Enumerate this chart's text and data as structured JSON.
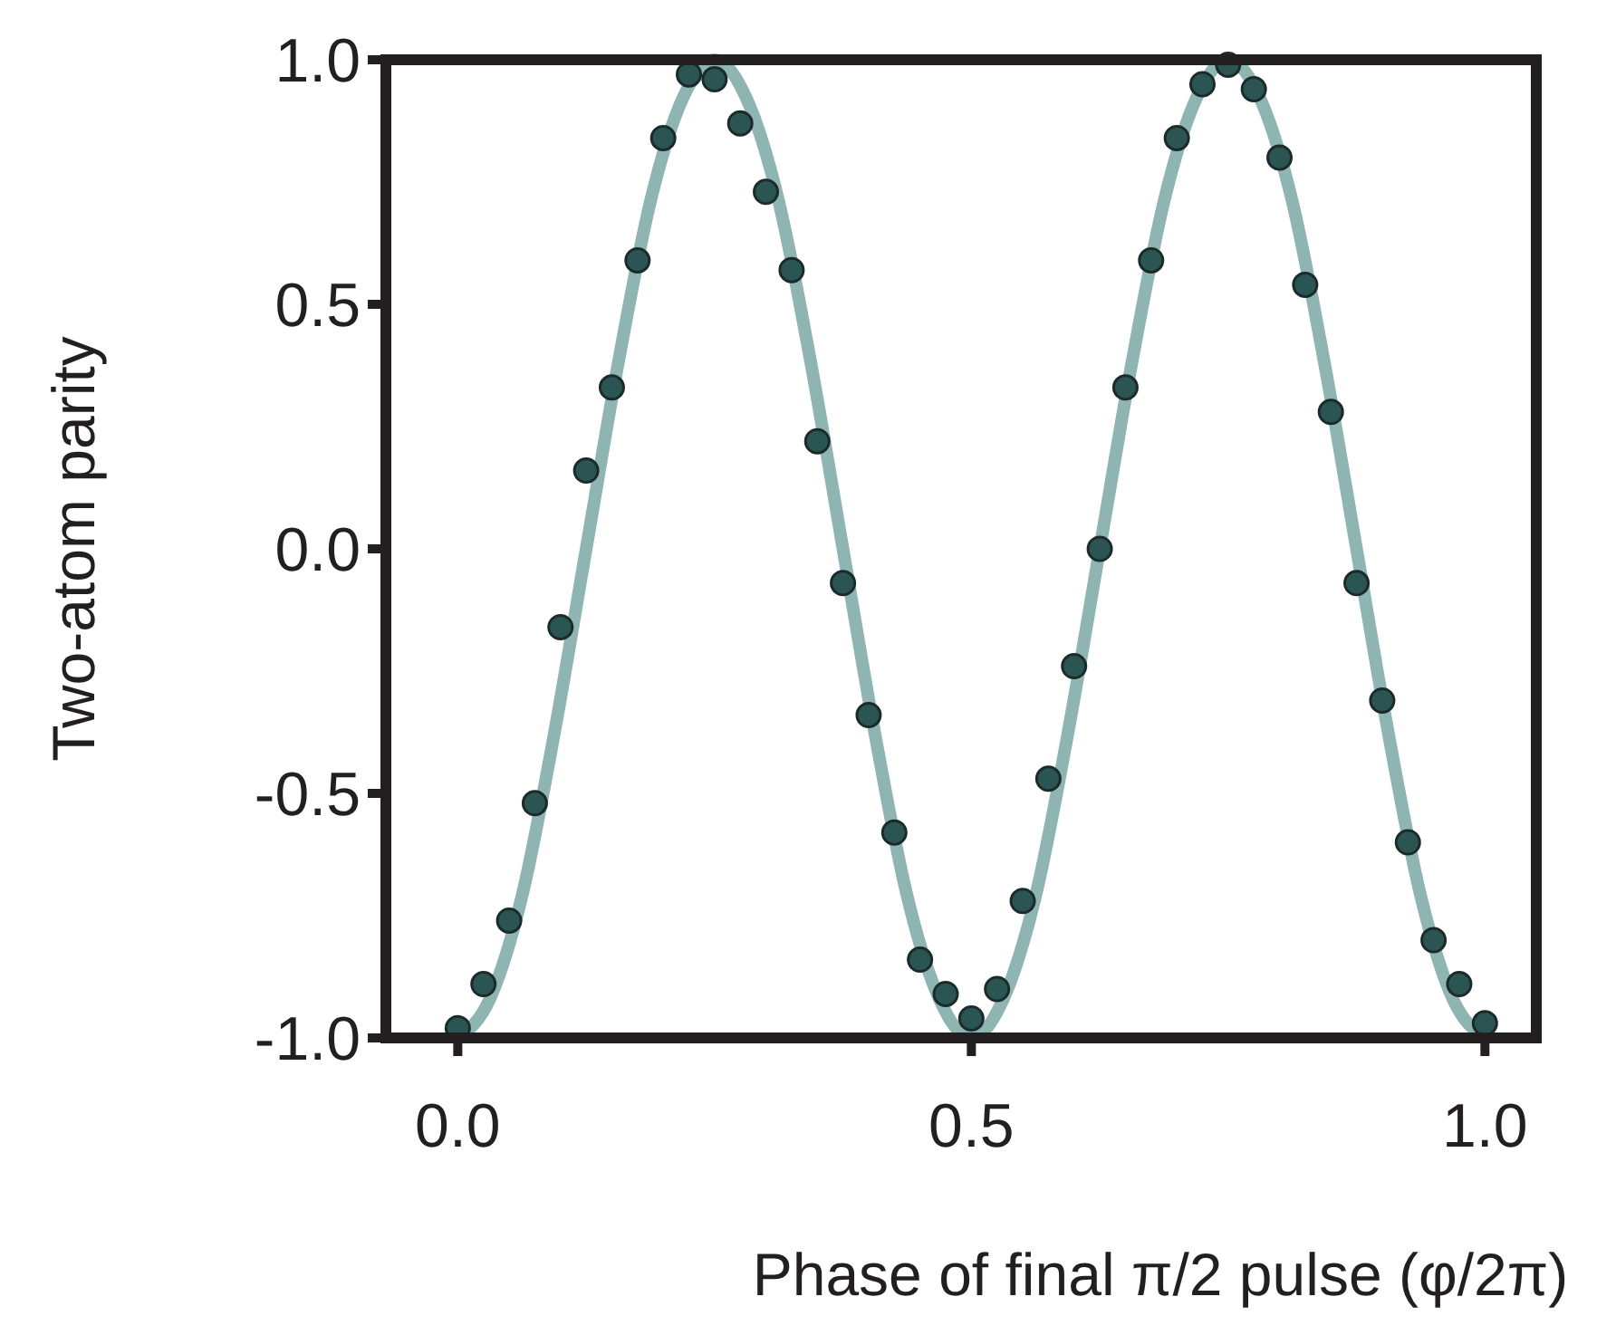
{
  "chart_data": {
    "type": "scatter",
    "xlabel": "Phase of final π/2 pulse (φ/2π)",
    "ylabel": "Two-atom parity",
    "xlim": [
      -0.07,
      1.05
    ],
    "ylim": [
      -1,
      1
    ],
    "xticks": [
      {
        "value": 0,
        "label": "0.0"
      },
      {
        "value": 0.5,
        "label": "0.5"
      },
      {
        "value": 1,
        "label": "1.0"
      }
    ],
    "yticks": [
      {
        "value": -1,
        "label": "-1.0"
      },
      {
        "value": -0.5,
        "label": "-0.5"
      },
      {
        "value": 0,
        "label": "0.0"
      },
      {
        "value": 0.5,
        "label": "0.5"
      },
      {
        "value": 1,
        "label": "1.0"
      }
    ],
    "grid": false,
    "marker": "circle",
    "series": [
      {
        "type": "line",
        "color": "#8fb5b3",
        "line_style": "solid",
        "marker": "none",
        "x": [
          0,
          0.03125,
          0.0625,
          0.09375,
          0.125,
          0.15625,
          0.1875,
          0.21875,
          0.25,
          0.28125,
          0.3125,
          0.34375,
          0.375,
          0.40625,
          0.4375,
          0.46875,
          0.5,
          0.53125,
          0.5625,
          0.59375,
          0.625,
          0.65625,
          0.6875,
          0.71875,
          0.75,
          0.78125,
          0.8125,
          0.84375,
          0.875,
          0.90625,
          0.9375,
          0.96875,
          1
        ],
        "values": [
          -1,
          -0.92,
          -0.71,
          -0.38,
          0,
          0.38,
          0.71,
          0.92,
          1,
          0.92,
          0.71,
          0.38,
          0,
          -0.38,
          -0.71,
          -0.92,
          -1,
          -0.92,
          -0.71,
          -0.38,
          0,
          0.38,
          0.71,
          0.92,
          1,
          0.92,
          0.71,
          0.38,
          0,
          -0.38,
          -0.71,
          -0.92,
          -1
        ]
      },
      {
        "color": "#2b5553",
        "x": [
          0,
          0.025,
          0.05,
          0.075,
          0.1,
          0.125,
          0.15,
          0.175,
          0.2,
          0.225,
          0.25,
          0.275,
          0.3,
          0.325,
          0.35,
          0.375,
          0.4,
          0.425,
          0.45,
          0.475,
          0.5,
          0.525,
          0.55,
          0.575,
          0.6,
          0.625,
          0.65,
          0.675,
          0.7,
          0.725,
          0.75,
          0.775,
          0.8,
          0.825,
          0.85,
          0.875,
          0.9,
          0.925,
          0.95,
          0.975,
          1
        ],
        "values": [
          -0.98,
          -0.89,
          -0.76,
          -0.52,
          -0.16,
          0.16,
          0.33,
          0.59,
          0.84,
          0.97,
          0.96,
          0.87,
          0.73,
          0.57,
          0.22,
          -0.07,
          -0.34,
          -0.58,
          -0.84,
          -0.91,
          -0.96,
          -0.9,
          -0.72,
          -0.47,
          -0.24,
          0,
          0.33,
          0.59,
          0.84,
          0.95,
          0.99,
          0.94,
          0.8,
          0.54,
          0.28,
          -0.07,
          -0.31,
          -0.6,
          -0.8,
          -0.89,
          -0.97
        ]
      }
    ]
  }
}
